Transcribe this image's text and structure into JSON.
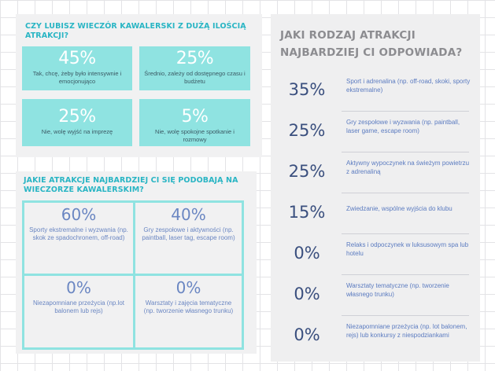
{
  "colors": {
    "teal": "#29b5c4",
    "card_teal": "#8fe3e1",
    "blue": "#6a86c2",
    "navy": "#3a4f7e",
    "gray_title": "#8c8c90"
  },
  "chart_data": [
    {
      "type": "table",
      "title": "CZY LUBISZ WIECZÓR KAWALERSKI Z DUŻĄ ILOŚCIĄ ATRAKCJI?",
      "items": [
        {
          "value": "45%",
          "label": "Tak, chcę, żeby było intensywnie i emocjonująco"
        },
        {
          "value": "25%",
          "label": "Średnio, zależy od dostępnego czasu i budżetu"
        },
        {
          "value": "25%",
          "label": "Nie, wolę wyjść na imprezę"
        },
        {
          "value": "5%",
          "label": "Nie, wolę spokojne spotkanie i rozmowy"
        }
      ]
    },
    {
      "type": "table",
      "title": "JAKIE ATRAKCJE NAJBARDZIEJ CI SIĘ PODOBAJĄ NA WIECZORZE KAWALERSKIM?",
      "items": [
        {
          "value": "60%",
          "label": "Sporty ekstremalne i wyzwania (np. skok ze spadochronem, off-road)"
        },
        {
          "value": "40%",
          "label": "Gry zespołowe i aktywności (np. paintball, laser tag, escape room)"
        },
        {
          "value": "0%",
          "label": "Niezapomniane przeżycia (np.lot balonem lub rejs)"
        },
        {
          "value": "0%",
          "label": "Warsztaty i zajęcia tematyczne (np. tworzenie własnego trunku)"
        }
      ]
    },
    {
      "type": "table",
      "title": "JAKI RODZAJ ATRAKCJI NAJBARDZIEJ CI ODPOWIADA?",
      "items": [
        {
          "value": "35%",
          "label": "Sport i adrenalina (np. off-road, skoki, sporty ekstremalne)"
        },
        {
          "value": "25%",
          "label": "Gry zespołowe i wyzwania (np. paintball, laser game, escape room)"
        },
        {
          "value": "25%",
          "label": "Aktywny wypoczynek na świeżym powietrzu z adrenaliną"
        },
        {
          "value": "15%",
          "label": "Zwiedzanie, wspólne wyjścia do klubu"
        },
        {
          "value": "0%",
          "label": "Relaks i odpoczynek w luksusowym spa lub hotelu"
        },
        {
          "value": "0%",
          "label": "Warsztaty tematyczne (np. tworzenie własnego trunku)"
        },
        {
          "value": "0%",
          "label": "Niezapomniane przeżycia (np. lot balonem, rejs) lub konkursy z niespodziankami"
        }
      ]
    }
  ]
}
